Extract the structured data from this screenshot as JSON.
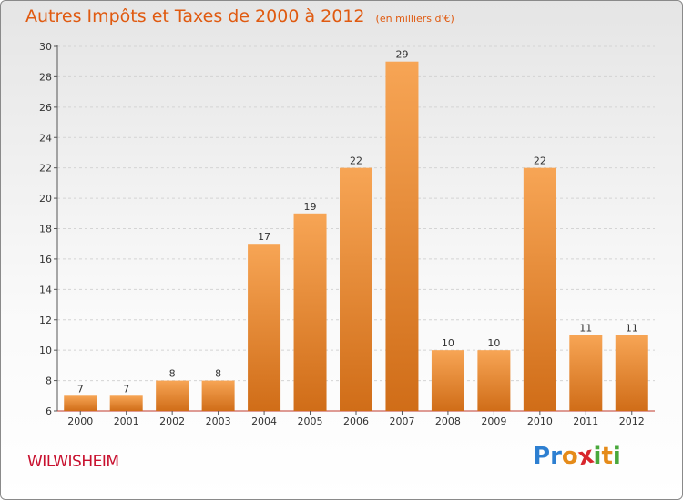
{
  "header": {
    "title": "Autres Impôts et Taxes de 2000 à 2012",
    "subtitle": "(en milliers d'€)"
  },
  "commune": "WILWISHEIM",
  "logo": {
    "text": "Proxiti",
    "letters": [
      {
        "ch": "P",
        "color": "#2d7fd1"
      },
      {
        "ch": "r",
        "color": "#2d7fd1"
      },
      {
        "ch": "o",
        "color": "#e58b1a"
      },
      {
        "ch": "x",
        "color": "#d8262c"
      },
      {
        "ch": "i",
        "color": "#49a83c"
      },
      {
        "ch": "t",
        "color": "#e58b1a"
      },
      {
        "ch": "i",
        "color": "#49a83c"
      }
    ]
  },
  "colors": {
    "bar_top": "#f7a555",
    "bar_bottom": "#d06d18",
    "title": "#e05a10",
    "commune": "#c8102e",
    "axis": "#c0392b"
  },
  "chart_data": {
    "type": "bar",
    "categories": [
      "2000",
      "2001",
      "2002",
      "2003",
      "2004",
      "2005",
      "2006",
      "2007",
      "2008",
      "2009",
      "2010",
      "2011",
      "2012"
    ],
    "values": [
      7,
      7,
      8,
      8,
      17,
      19,
      22,
      29,
      10,
      10,
      22,
      11,
      11
    ],
    "ylim": [
      6,
      30
    ],
    "yticks": [
      6,
      8,
      10,
      12,
      14,
      16,
      18,
      20,
      22,
      24,
      26,
      28,
      30
    ],
    "grid": true
  }
}
